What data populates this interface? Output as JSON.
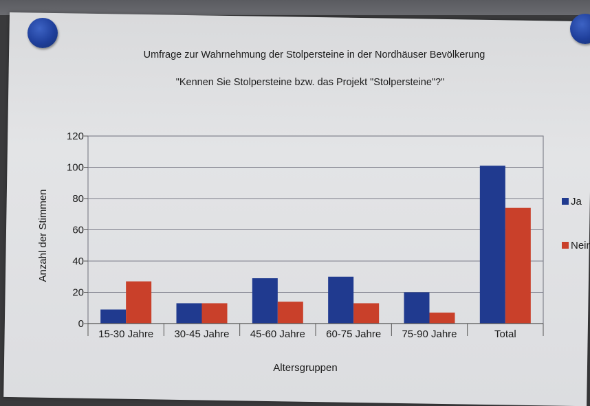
{
  "chart_data": {
    "type": "bar",
    "title": "Umfrage zur Wahrnehmung der Stolpersteine in der Nordhäuser Bevölkerung",
    "subtitle": "\"Kennen Sie Stolpersteine bzw. das Projekt \"Stolpersteine\"?\"",
    "xlabel": "Altersgruppen",
    "ylabel": "Anzahl der Stimmen",
    "ylim": [
      0,
      120
    ],
    "yticks": [
      "0",
      "20",
      "40",
      "60",
      "80",
      "100",
      "120"
    ],
    "categories": [
      "15-30 Jahre",
      "30-45 Jahre",
      "45-60 Jahre",
      "60-75 Jahre",
      "75-90 Jahre",
      "Total"
    ],
    "series": [
      {
        "name": "Ja",
        "color": "#203a8f",
        "values": [
          9,
          13,
          29,
          30,
          20,
          101
        ]
      },
      {
        "name": "Nein",
        "color": "#c9402a",
        "values": [
          27,
          13,
          14,
          13,
          7,
          74
        ]
      }
    ],
    "grid": true,
    "legend": "right"
  }
}
